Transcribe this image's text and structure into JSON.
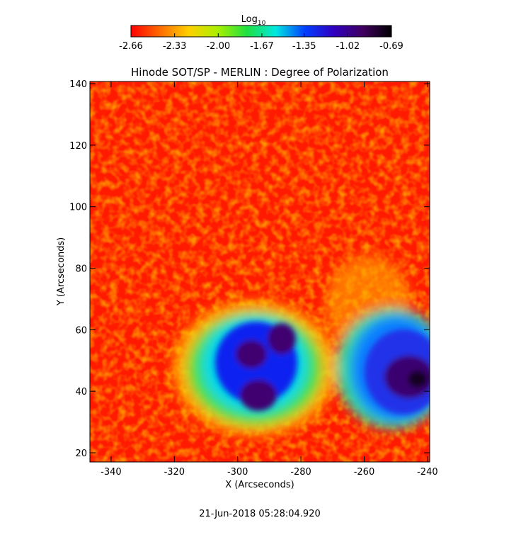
{
  "chart_data": {
    "type": "image",
    "title": "Hinode SOT/SP - MERLIN : Degree of Polarization",
    "x_label": "X (Arcseconds)",
    "y_label": "Y (Arcseconds)",
    "xlim": [
      -346.7,
      -239.3
    ],
    "ylim": [
      17,
      140.7
    ],
    "xticks": [
      -340,
      -320,
      -300,
      -280,
      -260,
      -240
    ],
    "yticks": [
      20,
      40,
      60,
      80,
      100,
      120,
      140
    ],
    "colorbar": {
      "label": "Log",
      "label_subscript": "10",
      "clim": [
        -2.66,
        -0.69
      ],
      "ticks": [
        -2.66,
        -2.33,
        {
          "value": -2,
          "label": "-2.00"
        },
        -1.67,
        -1.35,
        -1.02,
        -0.69
      ],
      "colormap": [
        "#ff0000",
        "#ff6a00",
        "#ffd000",
        "#a8f000",
        "#20e040",
        "#00e8e0",
        "#0040ff",
        "#3000c0",
        "#400060",
        "#000000"
      ]
    },
    "timestamp": "21-Jun-2018 05:28:04.920"
  }
}
